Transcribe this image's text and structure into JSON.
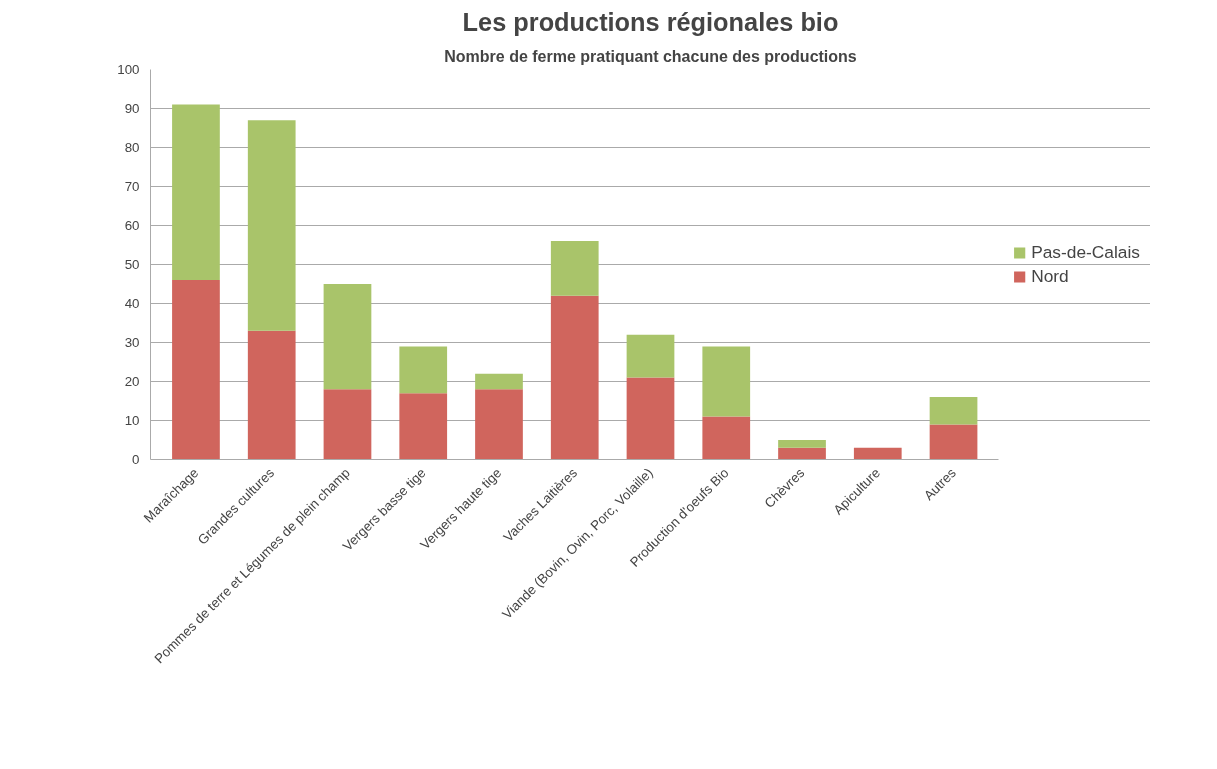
{
  "chart_data": {
    "type": "bar",
    "title": "Les productions régionales bio",
    "subtitle": "Nombre de ferme pratiquant chacune des productions",
    "categories": [
      "Maraîchage",
      "Grandes cultures",
      "Pommes de terre et Légumes de plein champ",
      "Vergers basse tige",
      "Vergers haute tige",
      "Vaches Laitières",
      "Viande (Bovin, Ovin, Porc, Volaille)",
      "Production d'oeufs Bio",
      "Chèvres",
      "Apiculture",
      "Autres"
    ],
    "series": [
      {
        "name": "Nord",
        "color": "#d0655d",
        "values": [
          46,
          33,
          18,
          17,
          18,
          42,
          21,
          11,
          3,
          3,
          9
        ]
      },
      {
        "name": "Pas-de-Calais",
        "color": "#a9c46a",
        "values": [
          45,
          54,
          27,
          12,
          4,
          14,
          11,
          18,
          2,
          0,
          7
        ]
      }
    ],
    "stacked": true,
    "ylim": [
      0,
      100
    ],
    "yticks": [
      0,
      10,
      20,
      30,
      40,
      50,
      60,
      70,
      80,
      90,
      100
    ],
    "grid": "y",
    "legend": "right"
  }
}
